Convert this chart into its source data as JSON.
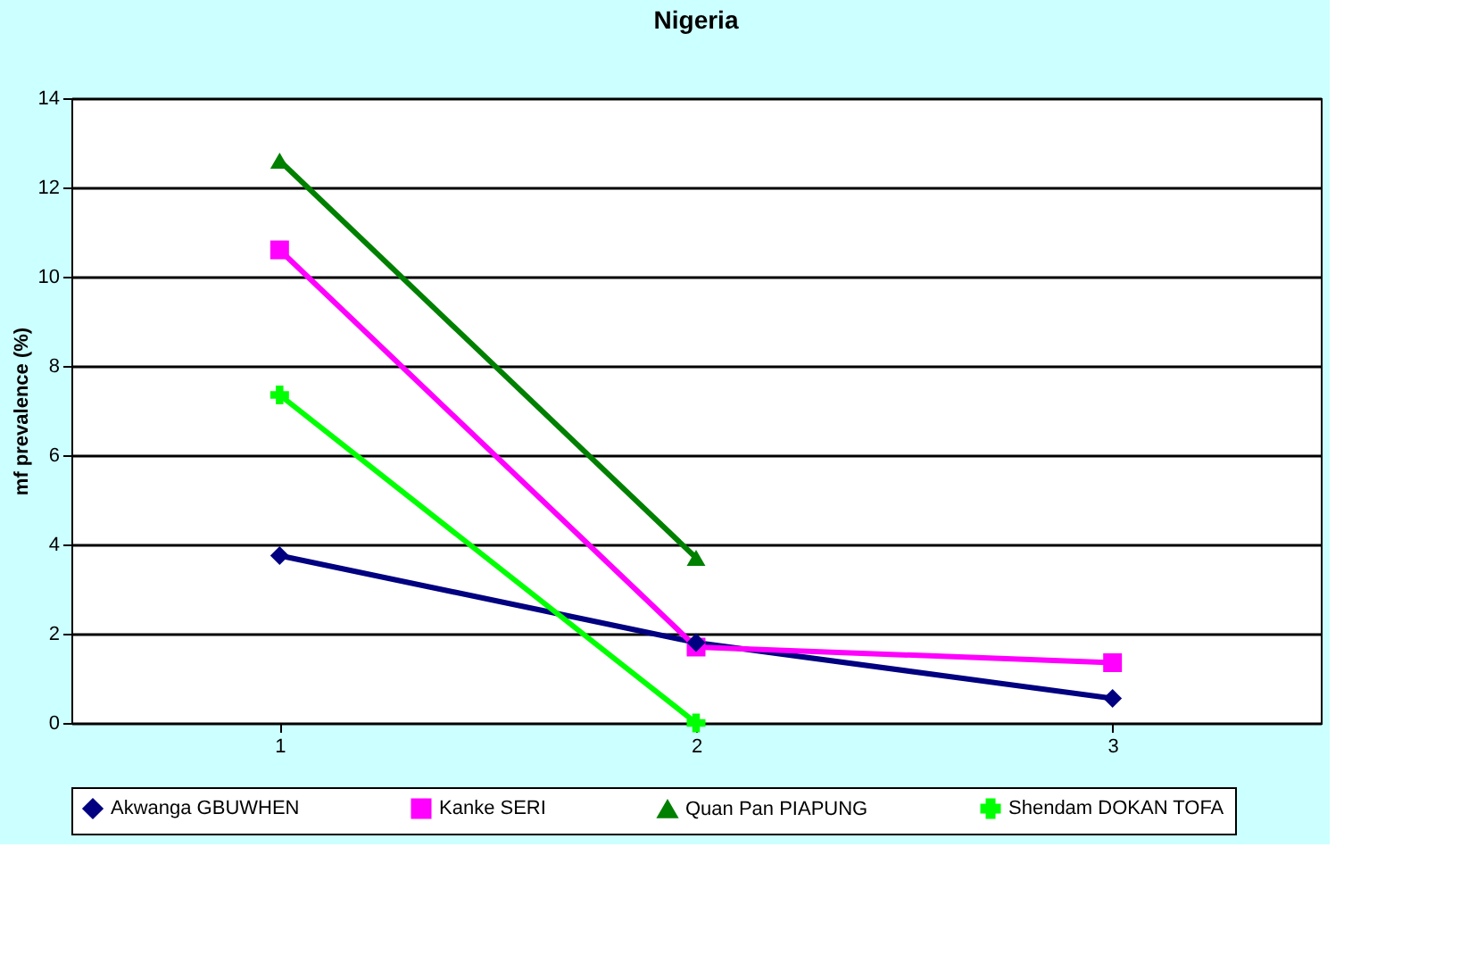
{
  "chart_data": {
    "type": "line",
    "title": "Nigeria",
    "ylabel": "mf prevalence (%)",
    "categories": [
      "1",
      "2",
      "3"
    ],
    "series": [
      {
        "name": "Akwanga GBUWHEN",
        "color": "#000080",
        "marker": "diamond",
        "values": [
          3.75,
          1.8,
          0.55
        ]
      },
      {
        "name": "Kanke SERI",
        "color": "#ff00ff",
        "marker": "square",
        "values": [
          10.6,
          1.7,
          1.35
        ]
      },
      {
        "name": "Quan Pan PIAPUNG",
        "color": "#008000",
        "marker": "triangle",
        "values": [
          12.6,
          3.7,
          null
        ]
      },
      {
        "name": "Shendam DOKAN TOFA",
        "color": "#00ff00",
        "marker": "cross",
        "values": [
          7.35,
          0,
          null
        ]
      }
    ],
    "ylim": [
      0,
      14
    ],
    "yticks": [
      0,
      2,
      4,
      6,
      8,
      10,
      12,
      14
    ],
    "grid": "y",
    "legend": "bottom",
    "line_style": "solid"
  }
}
